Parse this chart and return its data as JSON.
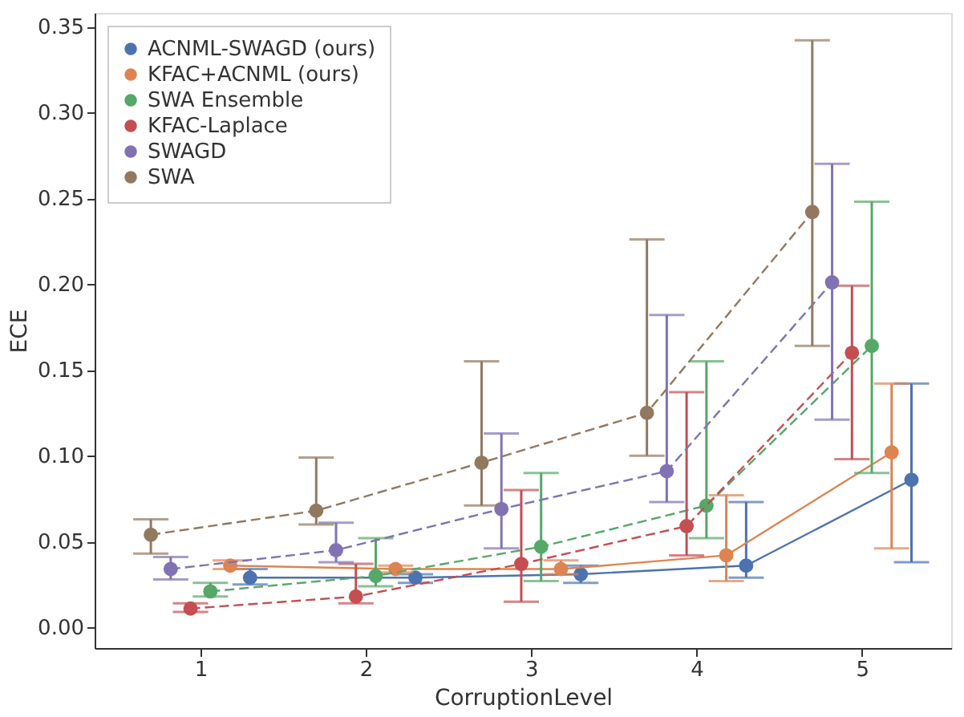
{
  "chart_data": {
    "type": "line",
    "xlabel": "CorruptionLevel",
    "ylabel": "ECE",
    "xlim": [
      0.36,
      5.54
    ],
    "xticks": [
      1,
      2,
      3,
      4,
      5
    ],
    "ylim": [
      -0.012,
      0.358
    ],
    "yticks": [
      {
        "value": 0,
        "label": "0.00"
      },
      {
        "value": 0.05,
        "label": "0.05"
      },
      {
        "value": 0.1,
        "label": "0.10"
      },
      {
        "value": 0.15,
        "label": "0.15"
      },
      {
        "value": 0.2,
        "label": "0.20"
      },
      {
        "value": 0.25,
        "label": "0.25"
      },
      {
        "value": 0.3,
        "label": "0.30"
      },
      {
        "value": 0.35,
        "label": "0.35"
      }
    ],
    "grid": false,
    "legend": "top left",
    "marker": "circle",
    "series": [
      {
        "name": "ACNML-SWAGD (ours)",
        "color": "#4c72b0",
        "line_style": "solid",
        "x": [
          1.3,
          2.3,
          3.3,
          4.3,
          5.3
        ],
        "values": [
          0.029,
          0.029,
          0.031,
          0.036,
          0.086
        ],
        "errors": [
          [
            0.025,
            0.034
          ],
          [
            0.026,
            0.031
          ],
          [
            0.026,
            0.036
          ],
          [
            0.029,
            0.073
          ],
          [
            0.038,
            0.142
          ]
        ]
      },
      {
        "name": "KFAC+ACNML (ours)",
        "color": "#dd8452",
        "line_style": "solid",
        "x": [
          1.18,
          2.18,
          3.18,
          4.18,
          5.18
        ],
        "values": [
          0.036,
          0.034,
          0.034,
          0.042,
          0.102
        ],
        "errors": [
          [
            0.034,
            0.039
          ],
          [
            0.032,
            0.036
          ],
          [
            0.031,
            0.039
          ],
          [
            0.027,
            0.077
          ],
          [
            0.046,
            0.142
          ]
        ]
      },
      {
        "name": "SWA Ensemble",
        "color": "#55a868",
        "line_style": "dashed",
        "x": [
          1.06,
          2.06,
          3.06,
          4.06,
          5.06
        ],
        "values": [
          0.021,
          0.03,
          0.047,
          0.071,
          0.164
        ],
        "errors": [
          [
            0.018,
            0.026
          ],
          [
            0.024,
            0.052
          ],
          [
            0.027,
            0.09
          ],
          [
            0.052,
            0.155
          ],
          [
            0.09,
            0.248
          ]
        ]
      },
      {
        "name": "KFAC-Laplace",
        "color": "#c44e52",
        "line_style": "dashed",
        "x": [
          0.94,
          1.94,
          2.94,
          3.94,
          4.94
        ],
        "values": [
          0.011,
          0.018,
          0.037,
          0.059,
          0.16
        ],
        "errors": [
          [
            0.009,
            0.014
          ],
          [
            0.014,
            0.037
          ],
          [
            0.015,
            0.08
          ],
          [
            0.042,
            0.137
          ],
          [
            0.098,
            0.199
          ]
        ]
      },
      {
        "name": "SWAGD",
        "color": "#8172b3",
        "line_style": "dashed",
        "x": [
          0.82,
          1.82,
          2.82,
          3.82,
          4.82
        ],
        "values": [
          0.034,
          0.045,
          0.069,
          0.091,
          0.201
        ],
        "errors": [
          [
            0.028,
            0.041
          ],
          [
            0.038,
            0.061
          ],
          [
            0.046,
            0.113
          ],
          [
            0.073,
            0.182
          ],
          [
            0.121,
            0.27
          ]
        ]
      },
      {
        "name": "SWA",
        "color": "#937860",
        "line_style": "dashed",
        "x": [
          0.7,
          1.7,
          2.7,
          3.7,
          4.7
        ],
        "values": [
          0.054,
          0.068,
          0.096,
          0.125,
          0.242
        ],
        "errors": [
          [
            0.043,
            0.063
          ],
          [
            0.06,
            0.099
          ],
          [
            0.071,
            0.155
          ],
          [
            0.1,
            0.226
          ],
          [
            0.164,
            0.342
          ]
        ]
      }
    ]
  }
}
